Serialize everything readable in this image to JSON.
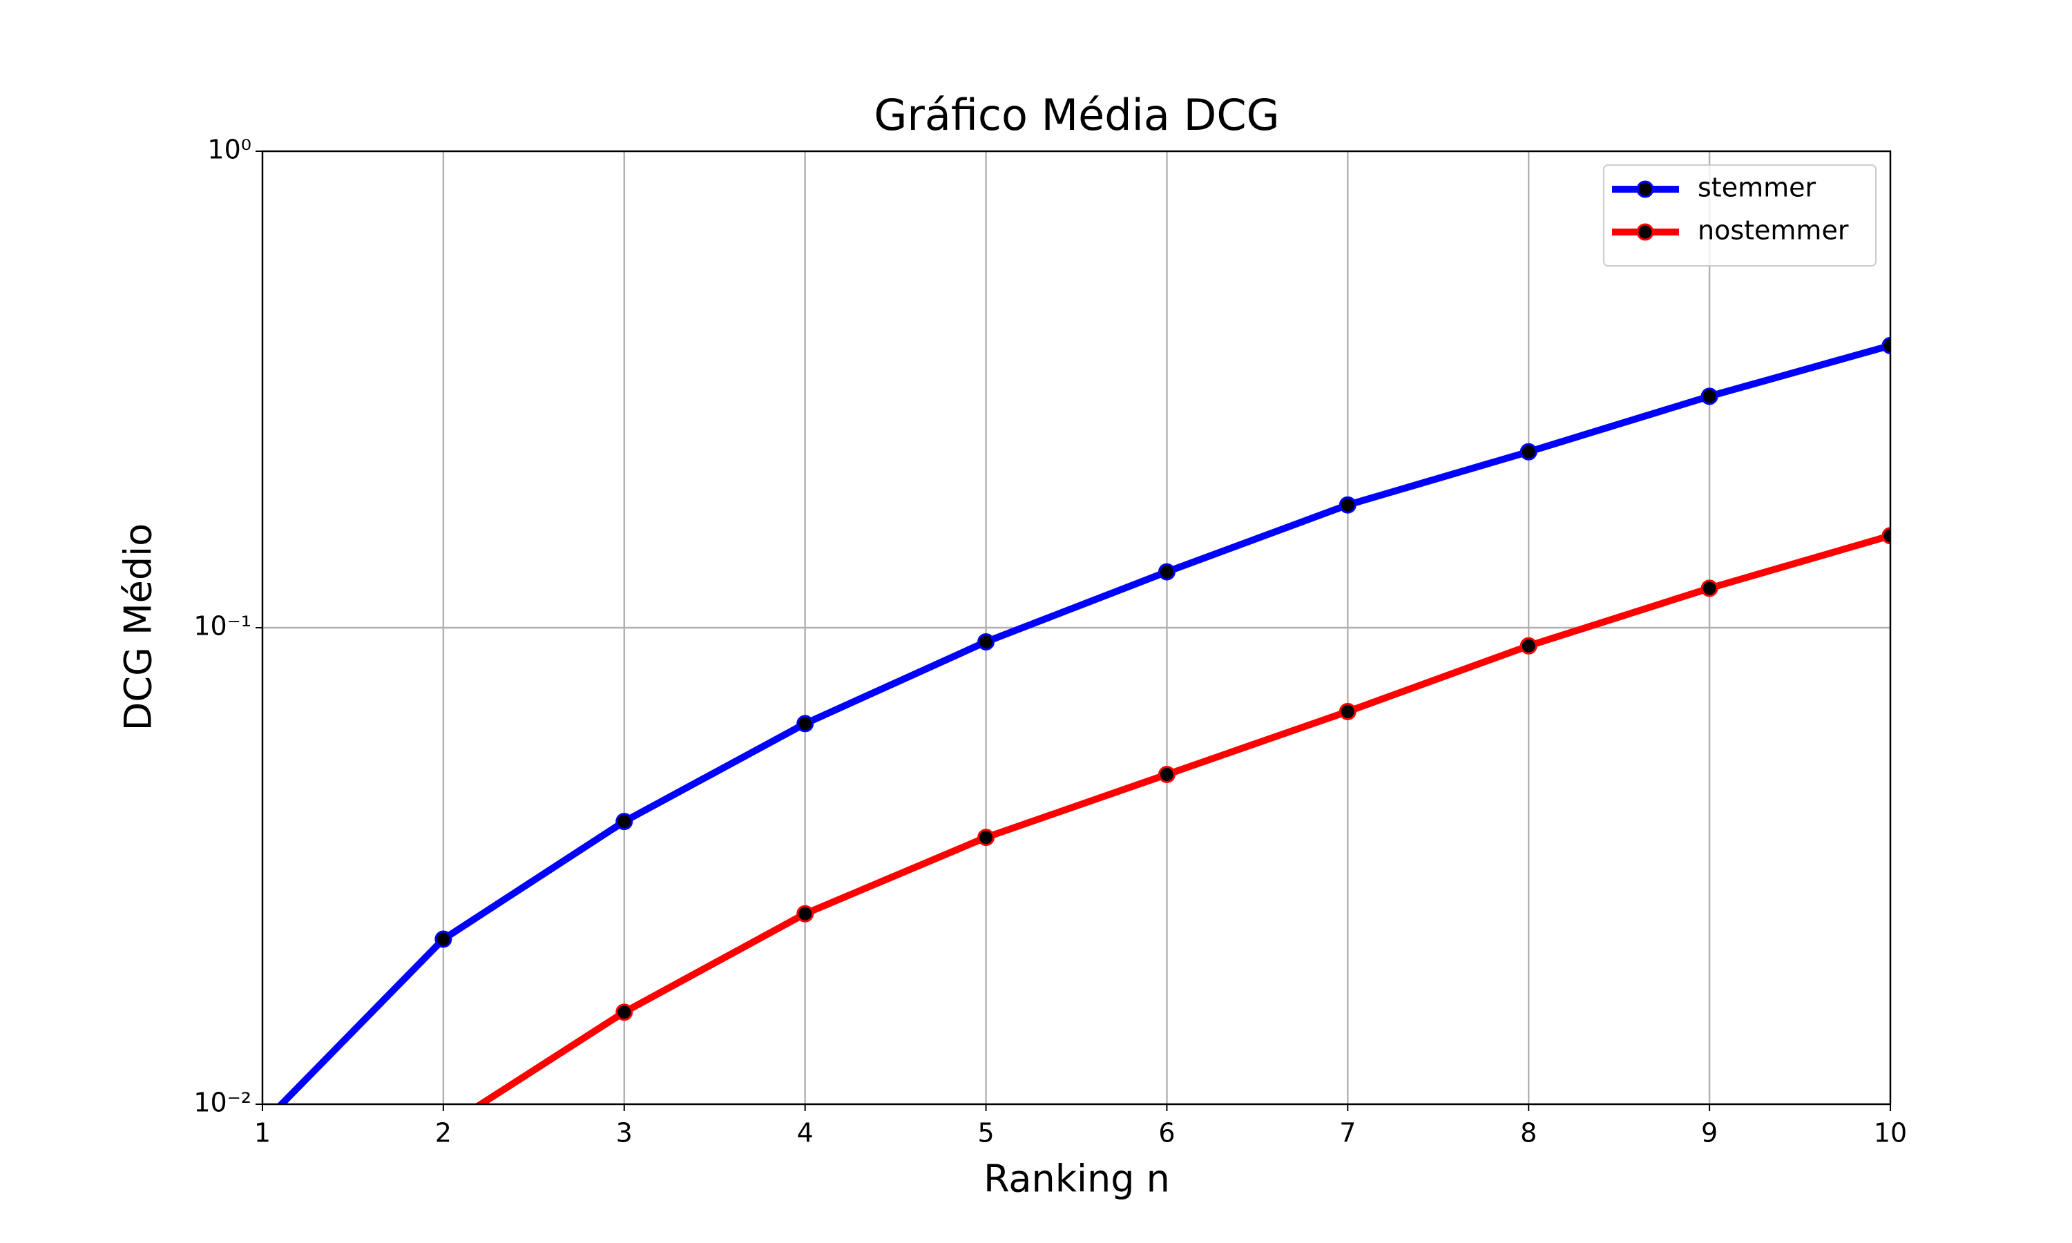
{
  "chart_data": {
    "type": "line",
    "title": "Gráfico Média DCG",
    "xlabel": "Ranking n",
    "ylabel": "DCG Médio",
    "x": [
      1,
      2,
      3,
      4,
      5,
      6,
      7,
      8,
      9,
      10
    ],
    "series": [
      {
        "name": "stemmer",
        "color": "#0000ff",
        "values": [
          0.0091,
          0.0222,
          0.0392,
          0.0629,
          0.0934,
          0.131,
          0.181,
          0.234,
          0.306,
          0.391
        ]
      },
      {
        "name": "nostemmer",
        "color": "#ff0000",
        "values": [
          null,
          0.0089,
          0.0156,
          0.0251,
          0.0363,
          0.0492,
          0.0667,
          0.0916,
          0.121,
          0.156
        ]
      }
    ],
    "xlim": [
      1,
      10
    ],
    "xticks": [
      1,
      2,
      3,
      4,
      5,
      6,
      7,
      8,
      9,
      10
    ],
    "ylim": [
      0.01,
      1
    ],
    "yscale": "log",
    "yticks": [
      {
        "value": 0.01,
        "label": "10⁻²"
      },
      {
        "value": 0.1,
        "label": "10⁻¹"
      },
      {
        "value": 1,
        "label": "10⁰"
      }
    ],
    "grid": true,
    "legend": "upper right",
    "marker_color": "#000000"
  }
}
